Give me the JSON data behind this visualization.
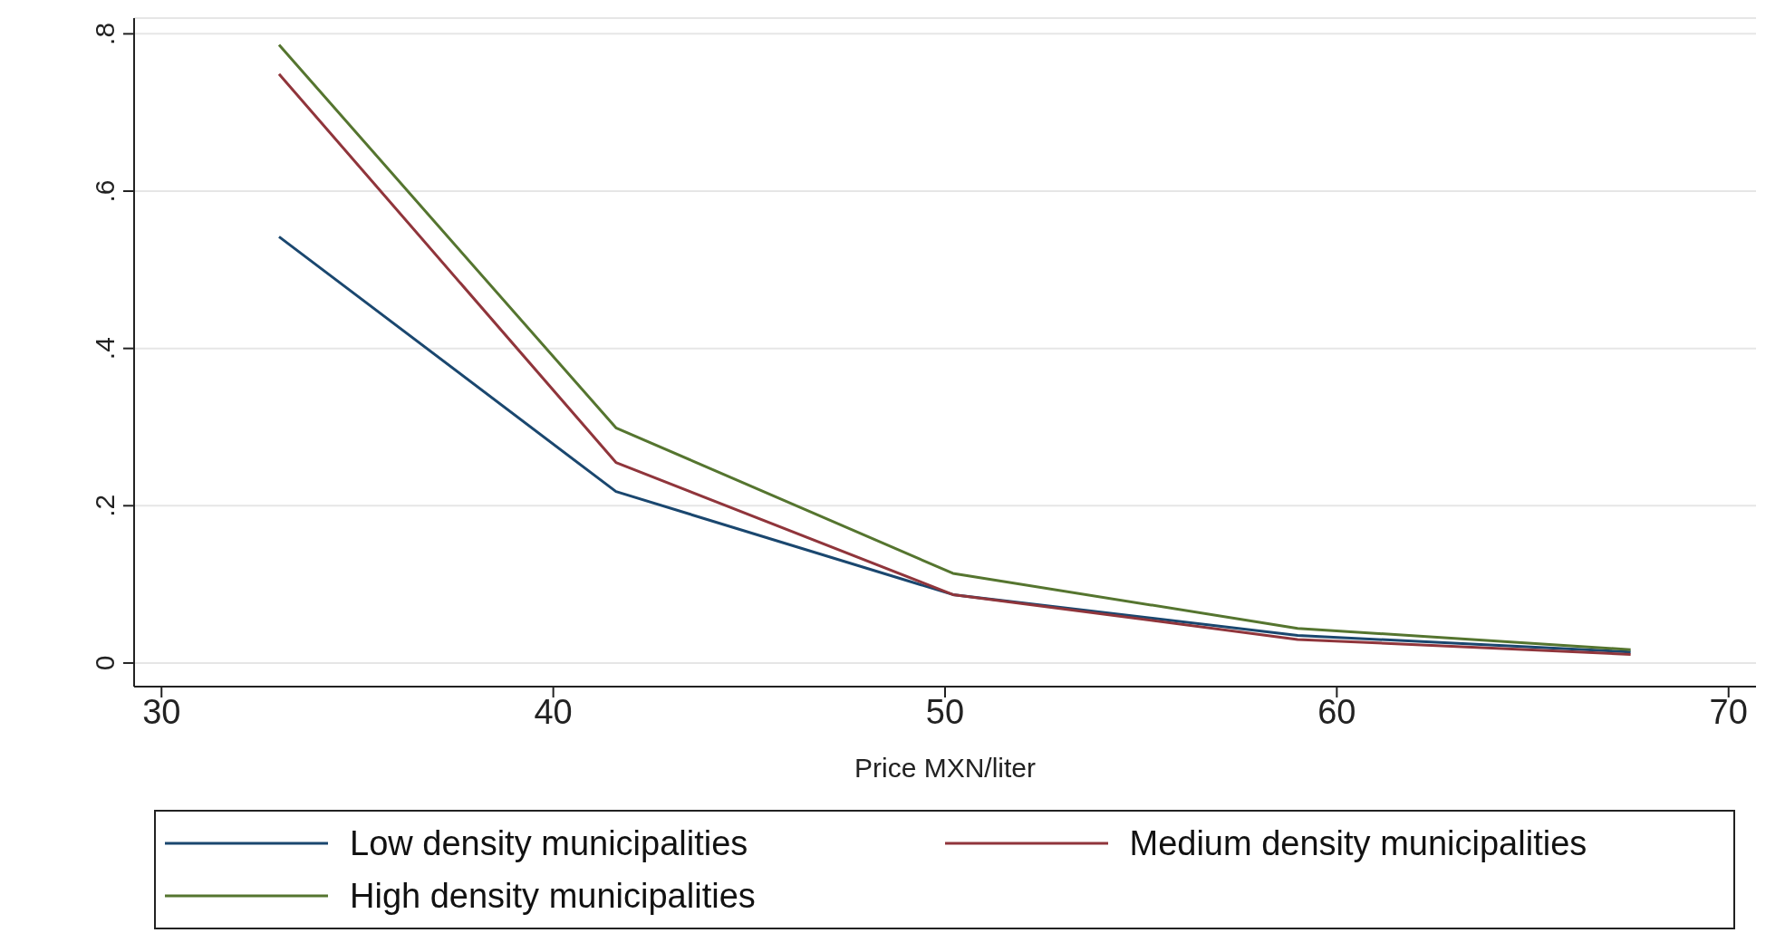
{
  "chart_data": {
    "type": "line",
    "xlabel": "Price MXN/liter",
    "x": [
      33,
      41.6,
      50.2,
      59,
      67.5
    ],
    "series": [
      {
        "name": "Low density municipalities",
        "color": "#1a476f",
        "values": [
          0.542,
          0.218,
          0.087,
          0.035,
          0.014
        ]
      },
      {
        "name": "Medium density municipalities",
        "color": "#90353b",
        "values": [
          0.749,
          0.255,
          0.087,
          0.03,
          0.011
        ]
      },
      {
        "name": "High density municipalities",
        "color": "#55752f",
        "values": [
          0.786,
          0.299,
          0.114,
          0.044,
          0.017
        ]
      }
    ],
    "xlim": [
      29.3,
      70.7
    ],
    "xticks": [
      30,
      40,
      50,
      60,
      70
    ],
    "ylim": [
      -0.03,
      0.82
    ],
    "yticks": [
      {
        "value": 0,
        "label": "0"
      },
      {
        "value": 0.2,
        "label": ".2"
      },
      {
        "value": 0.4,
        "label": ".4"
      },
      {
        "value": 0.6,
        "label": ".6"
      },
      {
        "value": 0.8,
        "label": ".8"
      }
    ],
    "grid": "y",
    "legend": "bottom",
    "marker": "none",
    "line_style": "solid"
  }
}
